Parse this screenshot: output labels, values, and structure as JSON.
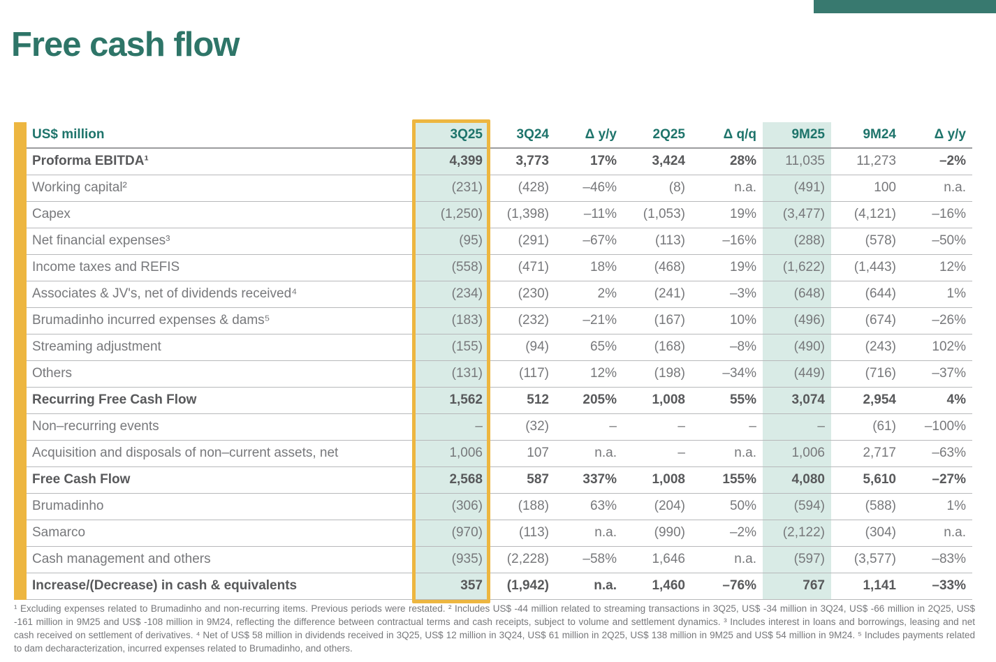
{
  "page": {
    "title": "Free cash flow",
    "accent_colors": {
      "teal": "#2E7568",
      "header_teal": "#1E746B",
      "yellow": "#EDB640",
      "mint": "#D9EBE6",
      "top_bar": "#38796F"
    }
  },
  "table": {
    "unit_label": "US$ million",
    "columns": [
      "3Q25",
      "3Q24",
      "Δ y/y",
      "2Q25",
      "Δ q/q",
      "9M25",
      "9M24",
      "Δ y/y"
    ],
    "highlighted_column": "3Q25",
    "shaded_columns": [
      "3Q25",
      "9M25"
    ],
    "rows": [
      {
        "label": "Proforma EBITDA¹",
        "bold": true,
        "values": [
          "4,399",
          "3,773",
          "17%",
          "3,424",
          "28%",
          "11,035",
          "11,273",
          "–2%"
        ],
        "bold_values": [
          true,
          true,
          true,
          true,
          true,
          false,
          false,
          true
        ]
      },
      {
        "label": "Working capital²",
        "bold": false,
        "values": [
          "(231)",
          "(428)",
          "–46%",
          "(8)",
          "n.a.",
          "(491)",
          "100",
          "n.a."
        ]
      },
      {
        "label": "Capex",
        "bold": false,
        "values": [
          "(1,250)",
          "(1,398)",
          "–11%",
          "(1,053)",
          "19%",
          "(3,477)",
          "(4,121)",
          "–16%"
        ]
      },
      {
        "label": "Net financial expenses³",
        "bold": false,
        "values": [
          "(95)",
          "(291)",
          "–67%",
          "(113)",
          "–16%",
          "(288)",
          "(578)",
          "–50%"
        ]
      },
      {
        "label": "Income taxes and REFIS",
        "bold": false,
        "values": [
          "(558)",
          "(471)",
          "18%",
          "(468)",
          "19%",
          "(1,622)",
          "(1,443)",
          "12%"
        ]
      },
      {
        "label": "Associates & JV's, net of dividends received⁴",
        "bold": false,
        "values": [
          "(234)",
          "(230)",
          "2%",
          "(241)",
          "–3%",
          "(648)",
          "(644)",
          "1%"
        ]
      },
      {
        "label": "Brumadinho incurred expenses & dams⁵",
        "bold": false,
        "values": [
          "(183)",
          "(232)",
          "–21%",
          "(167)",
          "10%",
          "(496)",
          "(674)",
          "–26%"
        ]
      },
      {
        "label": "Streaming adjustment",
        "bold": false,
        "values": [
          "(155)",
          "(94)",
          "65%",
          "(168)",
          "–8%",
          "(490)",
          "(243)",
          "102%"
        ]
      },
      {
        "label": "Others",
        "bold": false,
        "values": [
          "(131)",
          "(117)",
          "12%",
          "(198)",
          "–34%",
          "(449)",
          "(716)",
          "–37%"
        ]
      },
      {
        "label": "Recurring Free Cash Flow",
        "bold": true,
        "values": [
          "1,562",
          "512",
          "205%",
          "1,008",
          "55%",
          "3,074",
          "2,954",
          "4%"
        ],
        "bold_values": [
          true,
          true,
          true,
          true,
          true,
          true,
          true,
          true
        ]
      },
      {
        "label": "Non–recurring events",
        "bold": false,
        "values": [
          "–",
          "(32)",
          "–",
          "–",
          "–",
          "–",
          "(61)",
          "–100%"
        ]
      },
      {
        "label": "Acquisition and disposals of non–current assets, net",
        "bold": false,
        "values": [
          "1,006",
          "107",
          "n.a.",
          "–",
          "n.a.",
          "1,006",
          "2,717",
          "–63%"
        ]
      },
      {
        "label": "Free Cash Flow",
        "bold": true,
        "values": [
          "2,568",
          "587",
          "337%",
          "1,008",
          "155%",
          "4,080",
          "5,610",
          "–27%"
        ],
        "bold_values": [
          true,
          true,
          true,
          true,
          true,
          true,
          true,
          true
        ]
      },
      {
        "label": "Brumadinho",
        "bold": false,
        "values": [
          "(306)",
          "(188)",
          "63%",
          "(204)",
          "50%",
          "(594)",
          "(588)",
          "1%"
        ]
      },
      {
        "label": "Samarco",
        "bold": false,
        "values": [
          "(970)",
          "(113)",
          "n.a.",
          "(990)",
          "–2%",
          "(2,122)",
          "(304)",
          "n.a."
        ]
      },
      {
        "label": "Cash management and others",
        "bold": false,
        "values": [
          "(935)",
          "(2,228)",
          "–58%",
          "1,646",
          "n.a.",
          "(597)",
          "(3,577)",
          "–83%"
        ]
      },
      {
        "label": "Increase/(Decrease) in cash & equivalents",
        "bold": true,
        "values": [
          "357",
          "(1,942)",
          "n.a.",
          "1,460",
          "–76%",
          "767",
          "1,141",
          "–33%"
        ],
        "bold_values": [
          true,
          true,
          true,
          true,
          true,
          true,
          true,
          true
        ]
      }
    ]
  },
  "footnote": "¹ Excluding expenses related to Brumadinho and non-recurring items. Previous periods were restated. ² Includes US$ -44 million related to streaming transactions in 3Q25, US$ -34 million in 3Q24, US$ -66 million in 2Q25, US$ -161 million in 9M25 and US$ -108 million in 9M24, reflecting the difference between contractual terms and cash receipts, subject to volume and settlement dynamics. ³ Includes interest in loans and borrowings, leasing and net cash received on settlement of derivatives. ⁴ Net of US$ 58 million in dividends received in 3Q25, US$ 12 million in 3Q24, US$ 61 million in 2Q25, US$ 138 million in 9M25 and US$ 54 million in 9M24. ⁵ Includes payments related to dam decharacterization, incurred expenses related to Brumadinho, and others."
}
